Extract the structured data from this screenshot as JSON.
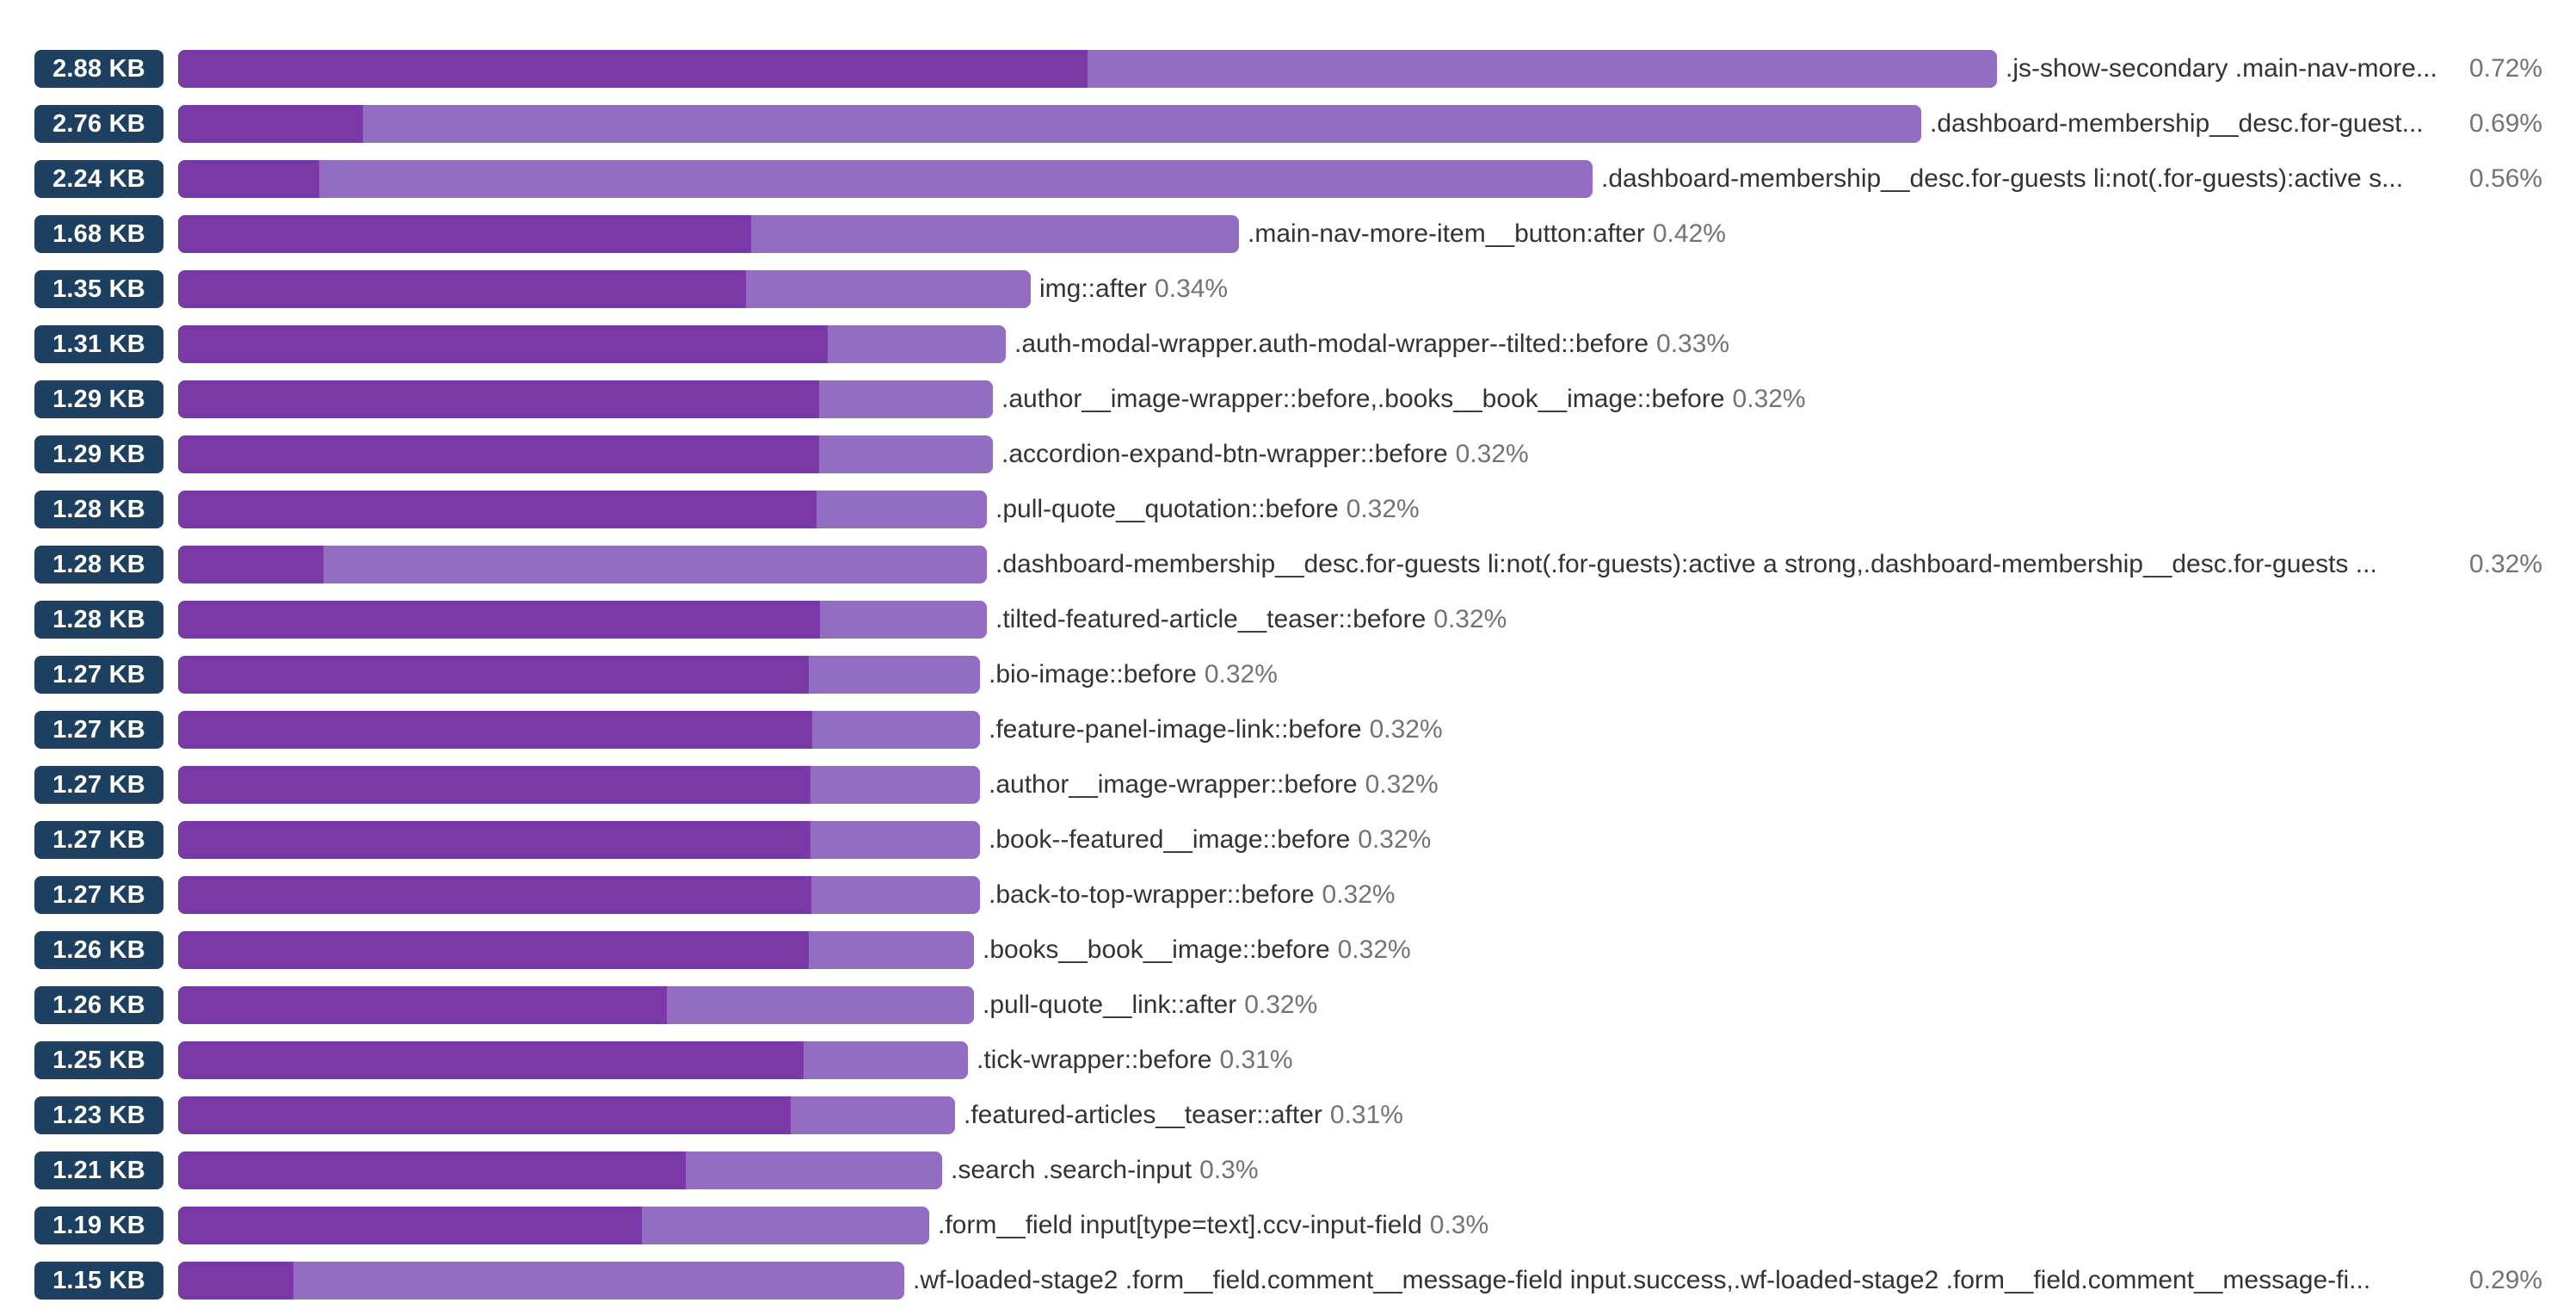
{
  "chart_data": {
    "type": "bar",
    "orientation": "horizontal",
    "title": "",
    "unit": "KB",
    "xlim_kb": [
      0,
      2.88
    ],
    "colors": {
      "badge": "#1e4060",
      "bar_primary": "#7b39a8",
      "bar_secondary": "#926dc2",
      "selector_text": "#333333",
      "percent_text": "#737373"
    },
    "rows": [
      {
        "size": 2.88,
        "size_label": "2.88 KB",
        "primary_fraction": 0.5,
        "selector": ".js-show-secondary .main-nav-more...",
        "percent": "0.72%",
        "truncated": true
      },
      {
        "size": 2.76,
        "size_label": "2.76 KB",
        "primary_fraction": 0.106,
        "selector": ".dashboard-membership__desc.for-guest...",
        "percent": "0.69%",
        "truncated": true
      },
      {
        "size": 2.24,
        "size_label": "2.24 KB",
        "primary_fraction": 0.1,
        "selector": ".dashboard-membership__desc.for-guests li:not(.for-guests):active s...",
        "percent": "0.56%",
        "truncated": true
      },
      {
        "size": 1.68,
        "size_label": "1.68 KB",
        "primary_fraction": 0.54,
        "selector": ".main-nav-more-item__button:after",
        "percent": "0.42%",
        "truncated": false
      },
      {
        "size": 1.35,
        "size_label": "1.35 KB",
        "primary_fraction": 0.666,
        "selector": "img::after",
        "percent": "0.34%",
        "truncated": false
      },
      {
        "size": 1.31,
        "size_label": "1.31 KB",
        "primary_fraction": 0.785,
        "selector": ".auth-modal-wrapper.auth-modal-wrapper--tilted::before",
        "percent": "0.33%",
        "truncated": false
      },
      {
        "size": 1.29,
        "size_label": "1.29 KB",
        "primary_fraction": 0.787,
        "selector": ".author__image-wrapper::before,.books__book__image::before",
        "percent": "0.32%",
        "truncated": false
      },
      {
        "size": 1.29,
        "size_label": "1.29 KB",
        "primary_fraction": 0.787,
        "selector": ".accordion-expand-btn-wrapper::before",
        "percent": "0.32%",
        "truncated": false
      },
      {
        "size": 1.28,
        "size_label": "1.28 KB",
        "primary_fraction": 0.789,
        "selector": ".pull-quote__quotation::before",
        "percent": "0.32%",
        "truncated": false
      },
      {
        "size": 1.28,
        "size_label": "1.28 KB",
        "primary_fraction": 0.18,
        "selector": ".dashboard-membership__desc.for-guests li:not(.for-guests):active a strong,.dashboard-membership__desc.for-guests ...",
        "percent": "0.32%",
        "truncated": true
      },
      {
        "size": 1.28,
        "size_label": "1.28 KB",
        "primary_fraction": 0.794,
        "selector": ".tilted-featured-article__teaser::before",
        "percent": "0.32%",
        "truncated": false
      },
      {
        "size": 1.27,
        "size_label": "1.27 KB",
        "primary_fraction": 0.787,
        "selector": ".bio-image::before",
        "percent": "0.32%",
        "truncated": false
      },
      {
        "size": 1.27,
        "size_label": "1.27 KB",
        "primary_fraction": 0.791,
        "selector": ".feature-panel-image-link::before",
        "percent": "0.32%",
        "truncated": false
      },
      {
        "size": 1.27,
        "size_label": "1.27 KB",
        "primary_fraction": 0.789,
        "selector": ".author__image-wrapper::before",
        "percent": "0.32%",
        "truncated": false
      },
      {
        "size": 1.27,
        "size_label": "1.27 KB",
        "primary_fraction": 0.789,
        "selector": ".book--featured__image::before",
        "percent": "0.32%",
        "truncated": false
      },
      {
        "size": 1.27,
        "size_label": "1.27 KB",
        "primary_fraction": 0.79,
        "selector": ".back-to-top-wrapper::before",
        "percent": "0.32%",
        "truncated": false
      },
      {
        "size": 1.26,
        "size_label": "1.26 KB",
        "primary_fraction": 0.792,
        "selector": ".books__book__image::before",
        "percent": "0.32%",
        "truncated": false
      },
      {
        "size": 1.26,
        "size_label": "1.26 KB",
        "primary_fraction": 0.614,
        "selector": ".pull-quote__link::after",
        "percent": "0.32%",
        "truncated": false
      },
      {
        "size": 1.25,
        "size_label": "1.25 KB",
        "primary_fraction": 0.792,
        "selector": ".tick-wrapper::before",
        "percent": "0.31%",
        "truncated": false
      },
      {
        "size": 1.23,
        "size_label": "1.23 KB",
        "primary_fraction": 0.788,
        "selector": ".featured-articles__teaser::after",
        "percent": "0.31%",
        "truncated": false
      },
      {
        "size": 1.21,
        "size_label": "1.21 KB",
        "primary_fraction": 0.664,
        "selector": ".search .search-input",
        "percent": "0.3%",
        "truncated": false
      },
      {
        "size": 1.19,
        "size_label": "1.19 KB",
        "primary_fraction": 0.617,
        "selector": ".form__field input[type=text].ccv-input-field",
        "percent": "0.3%",
        "truncated": false
      },
      {
        "size": 1.15,
        "size_label": "1.15 KB",
        "primary_fraction": 0.159,
        "selector": ".wf-loaded-stage2 .form__field.comment__message-field input.success,.wf-loaded-stage2 .form__field.comment__message-fi...",
        "percent": "0.29%",
        "truncated": true
      }
    ]
  }
}
